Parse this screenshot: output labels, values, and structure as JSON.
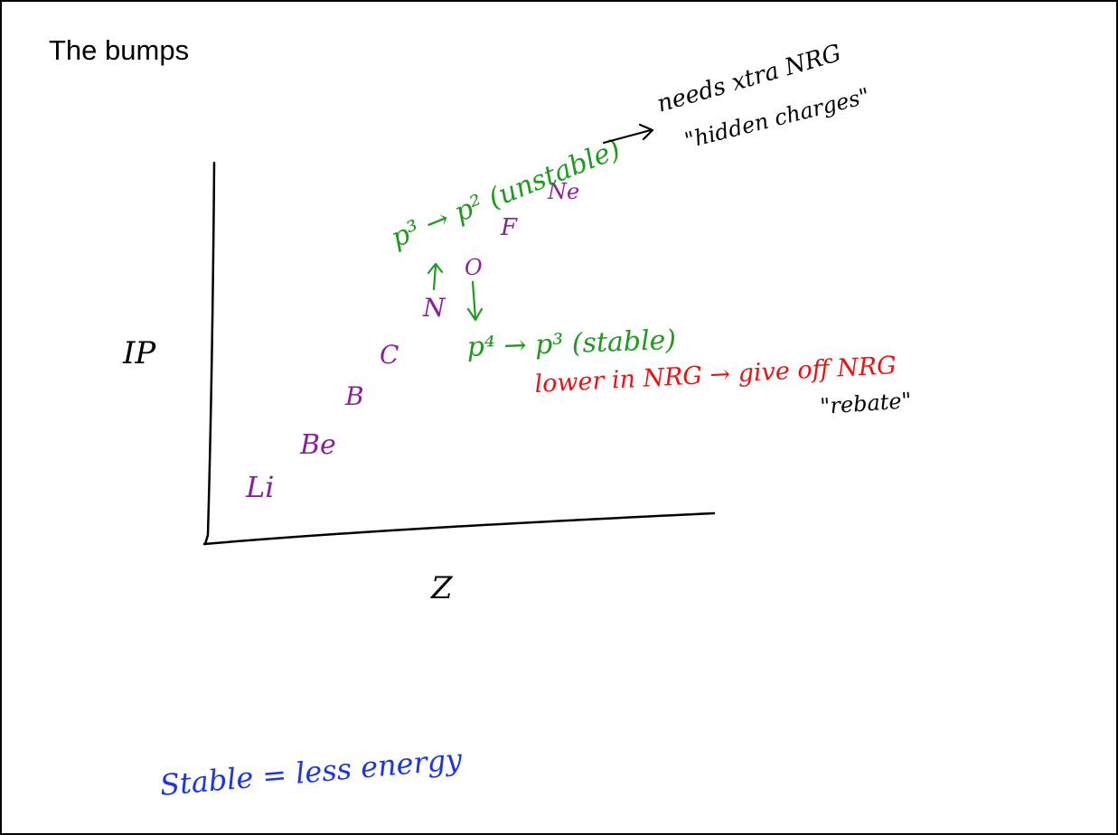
{
  "slide": {
    "title": "The bumps"
  },
  "axes": {
    "y_label": "IP",
    "x_label": "Z"
  },
  "elements": [
    "Li",
    "Be",
    "B",
    "C",
    "N",
    "O",
    "F",
    "Ne"
  ],
  "notes": {
    "p3_to_p2": "p³ → p² (unstable)",
    "needs_extra": "needs xtra NRG",
    "hidden_charges": "\"hidden charges\"",
    "p4_to_p3": "p⁴ → p³ (stable)",
    "lower_in_nrg": "lower in NRG → give off NRG",
    "rebate": "\"rebate\"",
    "stable_less": "Stable = less energy"
  },
  "colors": {
    "element": "#8a1f9a",
    "green": "#1f9a1f",
    "red": "#ee1111",
    "blue": "#1a34ee",
    "ink": "#000000"
  }
}
